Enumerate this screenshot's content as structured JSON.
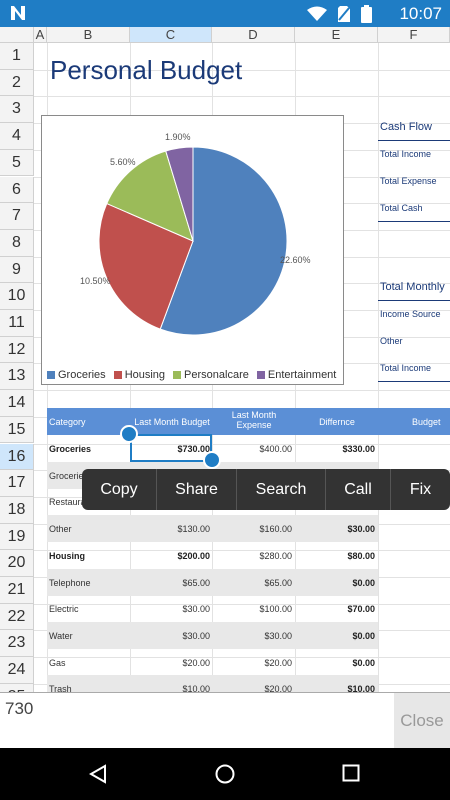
{
  "status": {
    "time": "10:07"
  },
  "columns": [
    "A",
    "B",
    "C",
    "D",
    "E",
    "F"
  ],
  "rows": [
    "1",
    "2",
    "3",
    "4",
    "5",
    "6",
    "7",
    "8",
    "9",
    "10",
    "11",
    "12",
    "13",
    "14",
    "15",
    "16",
    "17",
    "18",
    "19",
    "20",
    "21",
    "22",
    "23",
    "24",
    "25"
  ],
  "title": "Personal Budget",
  "chart_data": {
    "type": "pie",
    "categories": [
      "Groceries",
      "Housing",
      "Personalcare",
      "Entertainment"
    ],
    "values": [
      22.6,
      10.5,
      5.6,
      1.9
    ],
    "labels": [
      "22.60%",
      "10.50%",
      "5.60%",
      "1.90%"
    ],
    "colors": [
      "#4f81bd",
      "#c0504d",
      "#9bbb59",
      "#8064a2"
    ],
    "legend": "bottom"
  },
  "side": {
    "cash_flow": "Cash Flow",
    "total_income": "Total Income",
    "total_expense": "Total Expense",
    "total_cash": "Total Cash",
    "total_monthly": "Total Monthly",
    "income_source": "Income Source",
    "other": "Other",
    "total_income2": "Total Income"
  },
  "table": {
    "headers": [
      "Category",
      "Last Month Budget",
      "Last Month Expense",
      "Differnce",
      "Budget"
    ],
    "rows": [
      {
        "cat": "Groceries",
        "budget": "$730.00",
        "expense": "$400.00",
        "diff": "$330.00",
        "bold": true
      },
      {
        "cat": "Groceries",
        "budget": "",
        "expense": "",
        "diff": "",
        "bold": false
      },
      {
        "cat": "Restaurants",
        "budget": "",
        "expense": "",
        "diff": "",
        "bold": false
      },
      {
        "cat": "Other",
        "budget": "$130.00",
        "expense": "$160.00",
        "diff": "$30.00",
        "bold": false
      },
      {
        "cat": "Housing",
        "budget": "$200.00",
        "expense": "$280.00",
        "diff": "$80.00",
        "bold": true
      },
      {
        "cat": "Telephone",
        "budget": "$65.00",
        "expense": "$65.00",
        "diff": "$0.00",
        "bold": false
      },
      {
        "cat": "Electric",
        "budget": "$30.00",
        "expense": "$100.00",
        "diff": "$70.00",
        "bold": false
      },
      {
        "cat": "Water",
        "budget": "$30.00",
        "expense": "$30.00",
        "diff": "$0.00",
        "bold": false
      },
      {
        "cat": "Gas",
        "budget": "$20.00",
        "expense": "$20.00",
        "diff": "$0.00",
        "bold": false
      },
      {
        "cat": "Trash",
        "budget": "$10.00",
        "expense": "$20.00",
        "diff": "$10.00",
        "bold": false
      }
    ]
  },
  "context_menu": [
    "Copy",
    "Share",
    "Search",
    "Call",
    "Fix"
  ],
  "editbar": {
    "value": "730",
    "close": "Close"
  }
}
